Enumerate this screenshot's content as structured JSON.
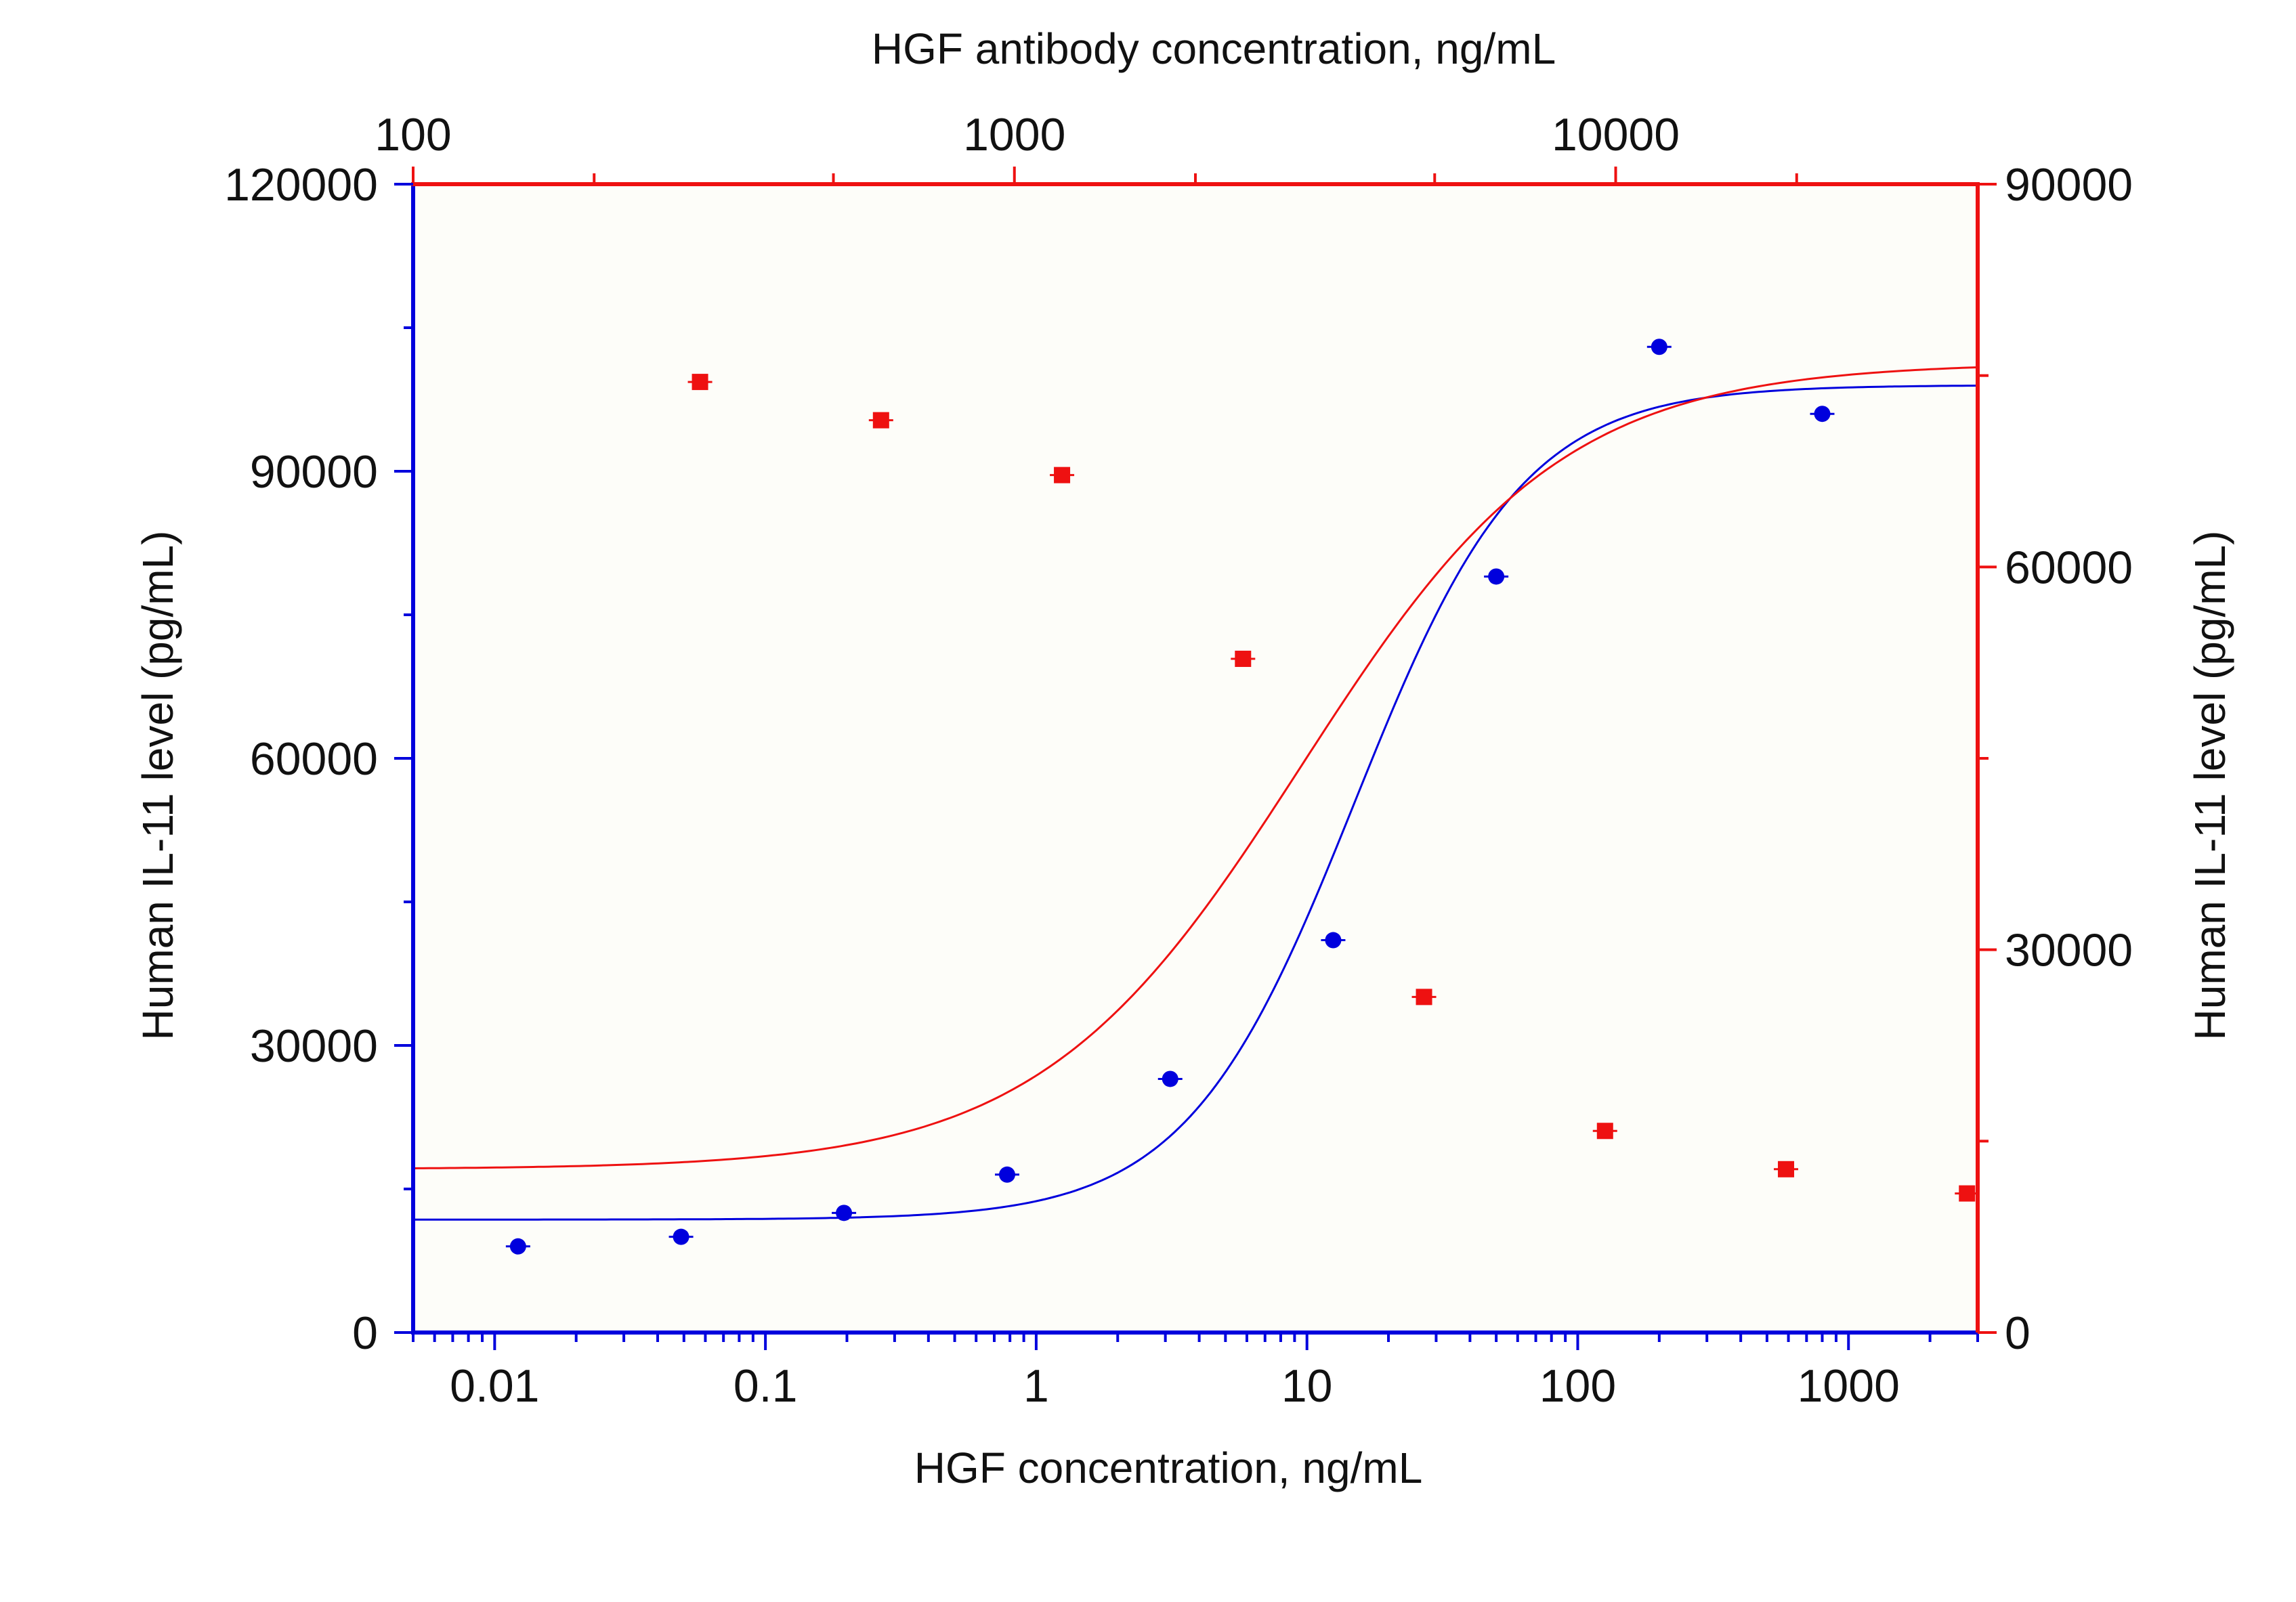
{
  "chart_data": {
    "type": "scatter",
    "x_bottom": {
      "label": "HGF concentration, ng/mL",
      "scale": "log",
      "range": [
        0.005,
        3000
      ],
      "tick_labels": [
        "0.01",
        "0.1",
        "1",
        "10",
        "100",
        "1000"
      ],
      "tick_values": [
        0.01,
        0.1,
        1,
        10,
        100,
        1000
      ],
      "color": "#0000dd"
    },
    "x_top": {
      "label": "HGF antibody concentration, ng/mL",
      "scale": "log",
      "range": [
        100,
        40000
      ],
      "tick_labels": [
        "100",
        "1000",
        "10000"
      ],
      "tick_values": [
        100,
        1000,
        10000
      ],
      "color": "#ee1111"
    },
    "y_left": {
      "label": "Human IL-11 level (pg/mL)",
      "range": [
        0,
        120000
      ],
      "tick_labels": [
        "0",
        "30000",
        "60000",
        "90000",
        "120000"
      ],
      "tick_values": [
        0,
        30000,
        60000,
        90000,
        120000
      ],
      "color": "#0000dd"
    },
    "y_right": {
      "label": "Human IL-11 level (pg/mL)",
      "range": [
        0,
        90000
      ],
      "tick_labels": [
        "0",
        "30000",
        "60000",
        "90000"
      ],
      "tick_values": [
        0,
        30000,
        60000,
        90000
      ],
      "color": "#ee1111"
    },
    "grid": false,
    "series": [
      {
        "axes": "bottom-left",
        "color": "#0000dd",
        "marker": "circle",
        "x": [
          0.0122,
          0.0488,
          0.195,
          0.781,
          3.125,
          12.5,
          50,
          200,
          800
        ],
        "y": [
          9000,
          10000,
          12500,
          16500,
          26500,
          41000,
          79000,
          103000,
          96000
        ],
        "fit": {
          "bottom": 11800,
          "top": 99000,
          "ec50": 15,
          "hill": 1.4
        }
      },
      {
        "axes": "top-right",
        "color": "#ee1111",
        "marker": "square",
        "x": [
          300,
          600,
          1200,
          2400,
          4800,
          9600,
          19200,
          38400
        ],
        "y": [
          74500,
          71500,
          67200,
          52800,
          26300,
          15800,
          12800,
          10900
        ],
        "fit": {
          "bottom": 12800,
          "top": 76000,
          "ec50": 3000,
          "hill": 2.0
        }
      }
    ]
  }
}
